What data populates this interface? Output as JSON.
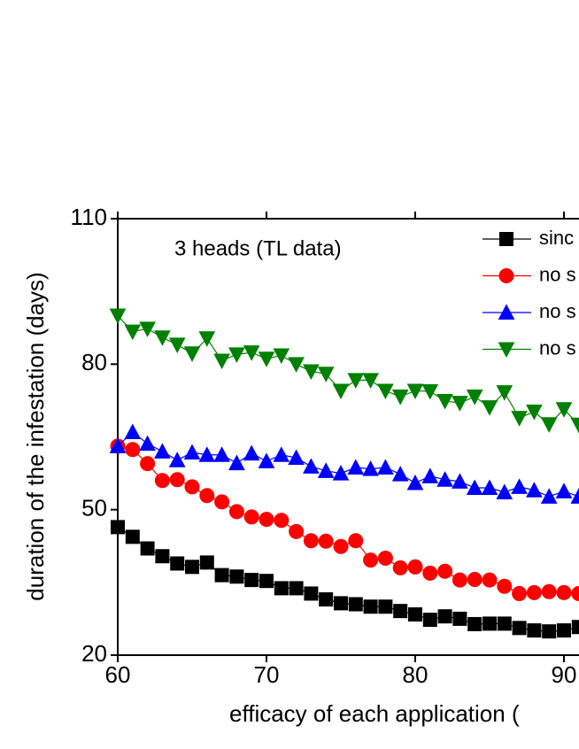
{
  "chart_data": {
    "type": "line",
    "annotation": "3 heads (TL data)",
    "x_label": "efficacy of each application (",
    "y_label": "duration of the infestation (days)",
    "x": [
      60,
      61,
      62,
      63,
      64,
      65,
      66,
      67,
      68,
      69,
      70,
      71,
      72,
      73,
      74,
      75,
      76,
      77,
      78,
      79,
      80,
      81,
      82,
      83,
      84,
      85,
      86,
      87,
      88,
      89,
      90,
      91
    ],
    "xlim": [
      60,
      100
    ],
    "xticks": [
      60,
      70,
      80,
      90
    ],
    "ylim": [
      20,
      110
    ],
    "yticks": [
      20,
      50,
      80,
      110
    ],
    "series": [
      {
        "name": "sinc",
        "color": "#000000",
        "marker": "square",
        "values": [
          46.4,
          44.4,
          42,
          40.4,
          38.9,
          38.2,
          39.1,
          36.5,
          36.2,
          35.5,
          35.3,
          33.8,
          33.8,
          32.7,
          31.5,
          30.7,
          30.5,
          30,
          30,
          29.1,
          28.4,
          27.3,
          28,
          27.5,
          26.4,
          26.5,
          26.5,
          25.6,
          25.1,
          24.9,
          25.1,
          25.8
        ]
      },
      {
        "name": "no s",
        "color": "#ff0000",
        "marker": "circle",
        "values": [
          63.1,
          62.4,
          59.5,
          56,
          56.2,
          54.7,
          52.9,
          51.6,
          49.6,
          48.5,
          48,
          47.8,
          45.5,
          43.6,
          43.5,
          42.4,
          43.6,
          39.6,
          40,
          38,
          38.2,
          36.9,
          37.3,
          35.5,
          35.6,
          35.5,
          34.2,
          32.7,
          32.9,
          33.1,
          32.9,
          32.7
        ]
      },
      {
        "name": "no s",
        "color": "#0000ff",
        "marker": "triangle-up",
        "values": [
          63.1,
          66,
          63.6,
          62,
          60.2,
          61.8,
          61.3,
          61.3,
          59.6,
          61.6,
          60,
          61.3,
          60.7,
          58.9,
          58,
          57.5,
          58.7,
          58.4,
          58.7,
          57.3,
          55.5,
          56.9,
          56.2,
          55.8,
          54.5,
          54.5,
          53.6,
          54.7,
          54,
          52.7,
          53.8,
          52.7
        ]
      },
      {
        "name": "no s",
        "color": "#008000",
        "marker": "triangle-down",
        "values": [
          90,
          86.7,
          87.3,
          85.5,
          84,
          82.2,
          85.3,
          80.7,
          82,
          82.4,
          81.1,
          81.8,
          80,
          78.5,
          78,
          74.5,
          76.7,
          76.7,
          74.5,
          73.3,
          74.5,
          74.4,
          72.4,
          72,
          73.3,
          71.1,
          74.2,
          68.9,
          70.2,
          67.6,
          70.7,
          67.5
        ]
      }
    ]
  }
}
